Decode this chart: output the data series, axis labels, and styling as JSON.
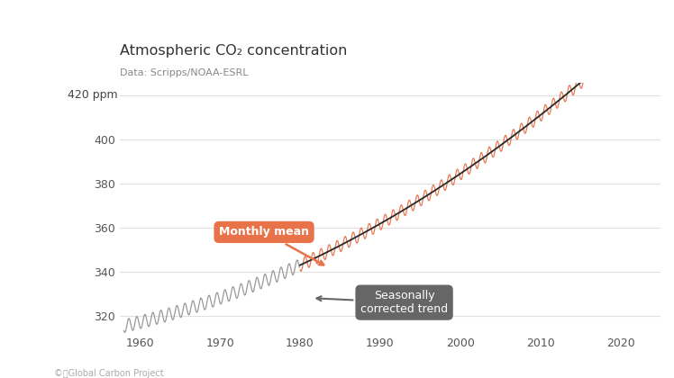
{
  "title": "Atmospheric CO₂ concentration",
  "subtitle": "Data: Scripps/NOAA-ESRL",
  "footer": "©ⓘGlobal Carbon Project",
  "ylabel": "ppm",
  "ytick_labels": [
    "320",
    "340",
    "360",
    "380",
    "400"
  ],
  "ytick_vals": [
    320,
    340,
    360,
    380,
    400
  ],
  "xticks": [
    1960,
    1970,
    1980,
    1990,
    2000,
    2010,
    2020
  ],
  "xlim": [
    1957.5,
    2025
  ],
  "ylim": [
    312,
    426
  ],
  "monthly_color": "#E8734A",
  "trend_color": "#2a2a2a",
  "gray_color": "#999999",
  "annotation_monthly_color": "#E8734A",
  "annotation_trend_color": "#666666",
  "annotation_monthly_text": "Monthly mean",
  "annotation_trend_text": "Seasonally\ncorrected trend",
  "background_color": "#ffffff",
  "grid_color": "#e0e0e0",
  "label_420_text": "420 ppm"
}
